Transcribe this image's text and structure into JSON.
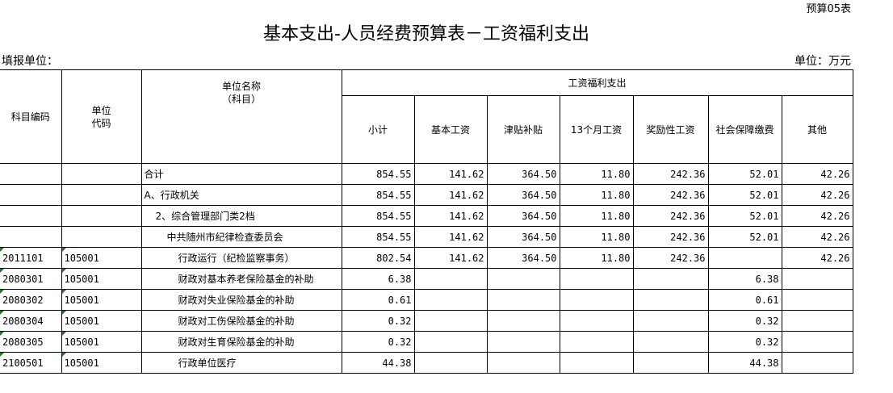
{
  "form_no": "预算05表",
  "title": "基本支出-人员经费预算表－工资福利支出",
  "filler_label": "填报单位：",
  "unit_label": "单位：万元",
  "headers": {
    "code": "科目编码",
    "unit_code": "单位\n代码",
    "unit_name": "单位名称\n（科目）",
    "group": "工资福利支出",
    "cols": [
      "小计",
      "基本工资",
      "津贴补贴",
      "13个月工资",
      "奖励性工资",
      "社会保障缴费",
      "其他"
    ]
  },
  "rows": [
    {
      "code": "",
      "unit_code": "",
      "name": "合计",
      "indent": 0,
      "values": [
        "854.55",
        "141.62",
        "364.50",
        "11.80",
        "242.36",
        "52.01",
        "42.26"
      ]
    },
    {
      "code": "",
      "unit_code": "",
      "name": "A、行政机关",
      "indent": 0,
      "values": [
        "854.55",
        "141.62",
        "364.50",
        "11.80",
        "242.36",
        "52.01",
        "42.26"
      ]
    },
    {
      "code": "",
      "unit_code": "",
      "name": "2、综合管理部门类2档",
      "indent": 1,
      "values": [
        "854.55",
        "141.62",
        "364.50",
        "11.80",
        "242.36",
        "52.01",
        "42.26"
      ]
    },
    {
      "code": "",
      "unit_code": "",
      "name": "中共随州市纪律检查委员会",
      "indent": 2,
      "values": [
        "854.55",
        "141.62",
        "364.50",
        "11.80",
        "242.36",
        "52.01",
        "42.26"
      ]
    },
    {
      "code": "2011101",
      "unit_code": "105001",
      "name": "行政运行（纪检监察事务）",
      "indent": 3,
      "values": [
        "802.54",
        "141.62",
        "364.50",
        "11.80",
        "242.36",
        "",
        "42.26"
      ]
    },
    {
      "code": "2080301",
      "unit_code": "105001",
      "name": "财政对基本养老保险基金的补助",
      "indent": 3,
      "values": [
        "6.38",
        "",
        "",
        "",
        "",
        "6.38",
        ""
      ]
    },
    {
      "code": "2080302",
      "unit_code": "105001",
      "name": "财政对失业保险基金的补助",
      "indent": 3,
      "values": [
        "0.61",
        "",
        "",
        "",
        "",
        "0.61",
        ""
      ]
    },
    {
      "code": "2080304",
      "unit_code": "105001",
      "name": "财政对工伤保险基金的补助",
      "indent": 3,
      "values": [
        "0.32",
        "",
        "",
        "",
        "",
        "0.32",
        ""
      ]
    },
    {
      "code": "2080305",
      "unit_code": "105001",
      "name": "财政对生育保险基金的补助",
      "indent": 3,
      "values": [
        "0.32",
        "",
        "",
        "",
        "",
        "0.32",
        ""
      ]
    },
    {
      "code": "2100501",
      "unit_code": "105001",
      "name": "行政单位医疗",
      "indent": 3,
      "values": [
        "44.38",
        "",
        "",
        "",
        "",
        "44.38",
        ""
      ]
    }
  ]
}
